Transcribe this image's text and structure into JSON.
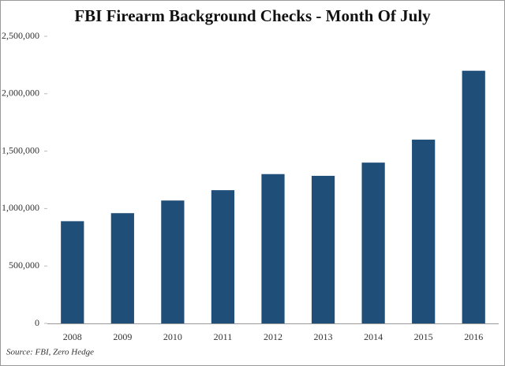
{
  "chart_data": {
    "type": "bar",
    "title": "FBI Firearm Background Checks - Month Of July",
    "categories": [
      "2008",
      "2009",
      "2010",
      "2011",
      "2012",
      "2013",
      "2014",
      "2015",
      "2016"
    ],
    "values": [
      890000,
      960000,
      1070000,
      1160000,
      1300000,
      1285000,
      1400000,
      1600000,
      2200000
    ],
    "color": "#1f4e79",
    "ylim": [
      0,
      2500000
    ],
    "yticks": [
      0,
      {
        "value": 500000,
        "label": "500,000"
      },
      {
        "value": 1000000,
        "label": "1,000,000"
      },
      {
        "value": 1500000,
        "label": "1,500,000"
      },
      {
        "value": 2000000,
        "label": "2,000,000"
      },
      {
        "value": 2500000,
        "label": "2,500,000"
      }
    ],
    "grid": false,
    "source": "Source: FBI, Zero Hedge"
  }
}
